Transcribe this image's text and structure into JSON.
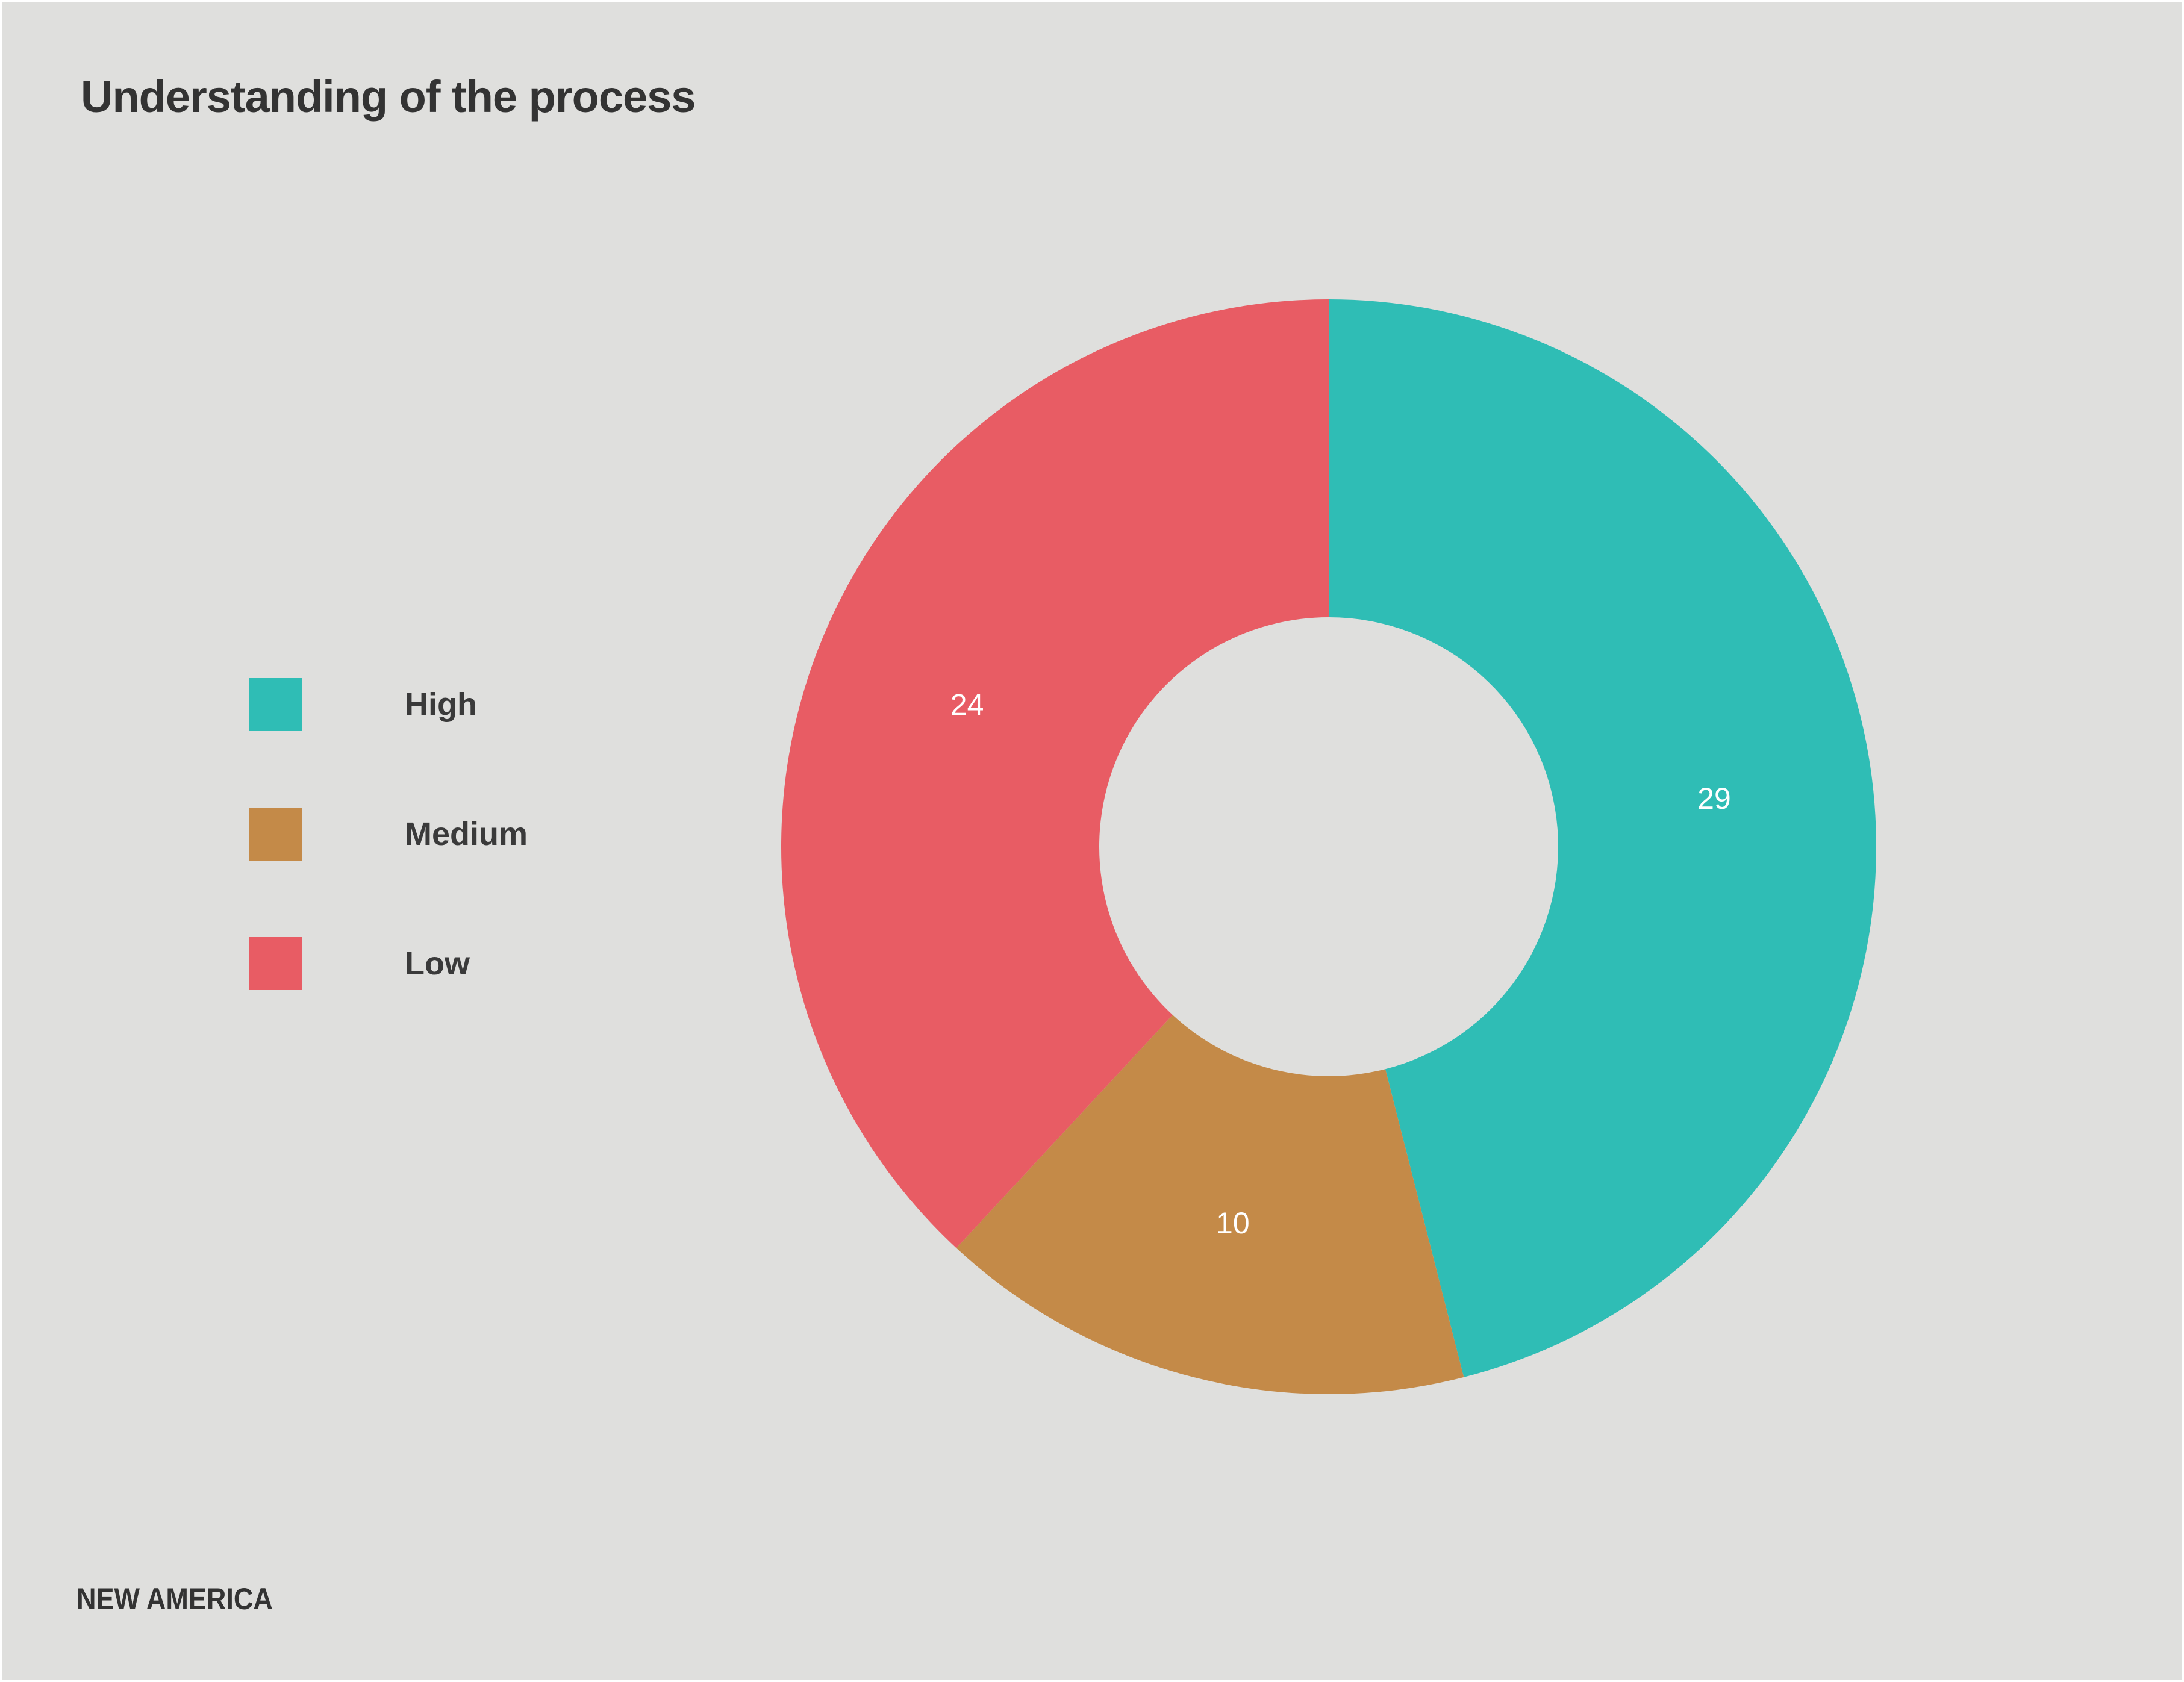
{
  "chart_data": {
    "type": "pie",
    "variant": "donut",
    "title": "Understanding of the process",
    "categories": [
      "High",
      "Medium",
      "Low"
    ],
    "values": [
      29,
      10,
      24
    ],
    "data_labels": [
      "29",
      "10",
      "24"
    ],
    "colors": [
      "#2fbdb5",
      "#c48a48",
      "#e85c64"
    ],
    "start_angle": "top, clockwise",
    "legend_placement": "left"
  },
  "footer": {
    "logo": "NEW AMERICA"
  },
  "colors": {
    "background": "#dfdfdd",
    "text": "#333333"
  }
}
